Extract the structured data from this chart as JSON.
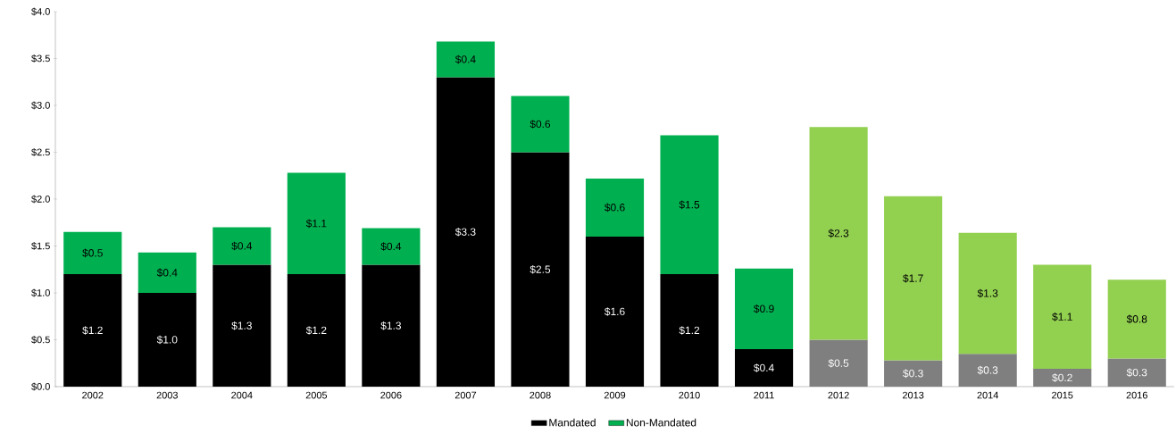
{
  "chart_data": {
    "type": "bar",
    "stacked": true,
    "categories": [
      "2002",
      "2003",
      "2004",
      "2005",
      "2006",
      "2007",
      "2008",
      "2009",
      "2010",
      "2011",
      "2012",
      "2013",
      "2014",
      "2015",
      "2016"
    ],
    "series": [
      {
        "name": "Mandated",
        "color": "#000000",
        "colors": [
          "#000000",
          "#000000",
          "#000000",
          "#000000",
          "#000000",
          "#000000",
          "#000000",
          "#000000",
          "#000000",
          "#000000",
          "#7f7f7f",
          "#7f7f7f",
          "#7f7f7f",
          "#7f7f7f",
          "#7f7f7f"
        ],
        "values": [
          1.2,
          1.0,
          1.3,
          1.2,
          1.3,
          3.3,
          2.5,
          1.6,
          1.2,
          0.4,
          0.5,
          0.28,
          0.35,
          0.19,
          0.3
        ],
        "value_labels": [
          "$1.2",
          "$1.0",
          "$1.3",
          "$1.2",
          "$1.3",
          "$3.3",
          "$2.5",
          "$1.6",
          "$1.2",
          "$0.4",
          "$0.5",
          "$0.3",
          "$0.3",
          "$0.2",
          "$0.3"
        ]
      },
      {
        "name": "Non-Mandated",
        "color": "#00b050",
        "colors": [
          "#00b050",
          "#00b050",
          "#00b050",
          "#00b050",
          "#00b050",
          "#00b050",
          "#00b050",
          "#00b050",
          "#00b050",
          "#00b050",
          "#92d050",
          "#92d050",
          "#92d050",
          "#92d050",
          "#92d050"
        ],
        "values": [
          0.45,
          0.43,
          0.4,
          1.08,
          0.39,
          0.38,
          0.6,
          0.62,
          1.48,
          0.86,
          2.27,
          1.75,
          1.29,
          1.11,
          0.84
        ],
        "value_labels": [
          "$0.5",
          "$0.4",
          "$0.4",
          "$1.1",
          "$0.4",
          "$0.4",
          "$0.6",
          "$0.6",
          "$1.5",
          "$0.9",
          "$2.3",
          "$1.7",
          "$1.3",
          "$1.1",
          "$0.8"
        ]
      }
    ],
    "ylim": [
      0,
      4.0
    ],
    "yticks": [
      {
        "value": 0,
        "label": "$0.0"
      },
      {
        "value": 0.5,
        "label": "$0.5"
      },
      {
        "value": 1.0,
        "label": "$1.0"
      },
      {
        "value": 1.5,
        "label": "$1.5"
      },
      {
        "value": 2.0,
        "label": "$2.0"
      },
      {
        "value": 2.5,
        "label": "$2.5"
      },
      {
        "value": 3.0,
        "label": "$3.0"
      },
      {
        "value": 3.5,
        "label": "$3.5"
      },
      {
        "value": 4.0,
        "label": "$4.0"
      }
    ],
    "grid": false,
    "legend": "bottom"
  }
}
